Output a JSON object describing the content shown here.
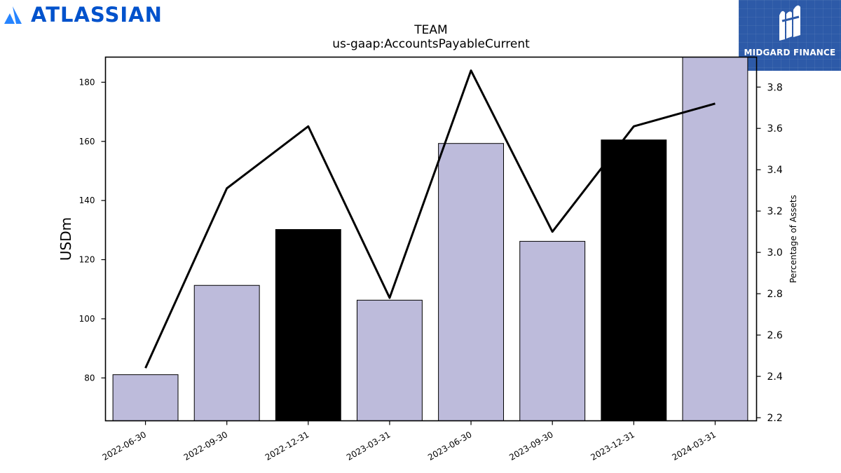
{
  "header": {
    "left_logo_text": "ATLASSIAN",
    "right_logo_text": "MIDGARD FINANCE"
  },
  "chart_data": {
    "type": "bar",
    "title": "TEAM",
    "subtitle": "us-gaap:AccountsPayableCurrent",
    "ylabel": "USDm",
    "ylabel_right": "Percentage of Assets",
    "categories": [
      "2022-06-30",
      "2022-09-30",
      "2022-12-31",
      "2023-03-31",
      "2023-06-30",
      "2023-09-30",
      "2023-12-31",
      "2024-03-31"
    ],
    "bar_colors": [
      "#bdbbdb",
      "#bdbbdb",
      "#000000",
      "#bdbbdb",
      "#bdbbdb",
      "#bdbbdb",
      "#000000",
      "#bdbbdb"
    ],
    "series": [
      {
        "axis": "left",
        "type": "bar",
        "values": [
          81.1,
          111.3,
          130.2,
          106.3,
          159.3,
          126.2,
          160.5,
          188.5
        ]
      },
      {
        "axis": "right",
        "type": "line",
        "color": "#000000",
        "values": [
          2.44,
          3.31,
          3.61,
          2.78,
          3.88,
          3.1,
          3.61,
          3.72
        ]
      }
    ],
    "ylim": [
      65.5,
      188.5
    ],
    "yticks": [
      80,
      100,
      120,
      140,
      160,
      180
    ],
    "ylim_right": [
      2.185,
      3.945
    ],
    "yticks_right": [
      "2.2",
      "2.4",
      "2.6",
      "2.8",
      "3.0",
      "3.2",
      "3.4",
      "3.6",
      "3.8"
    ],
    "grid": false,
    "legend": "none"
  }
}
